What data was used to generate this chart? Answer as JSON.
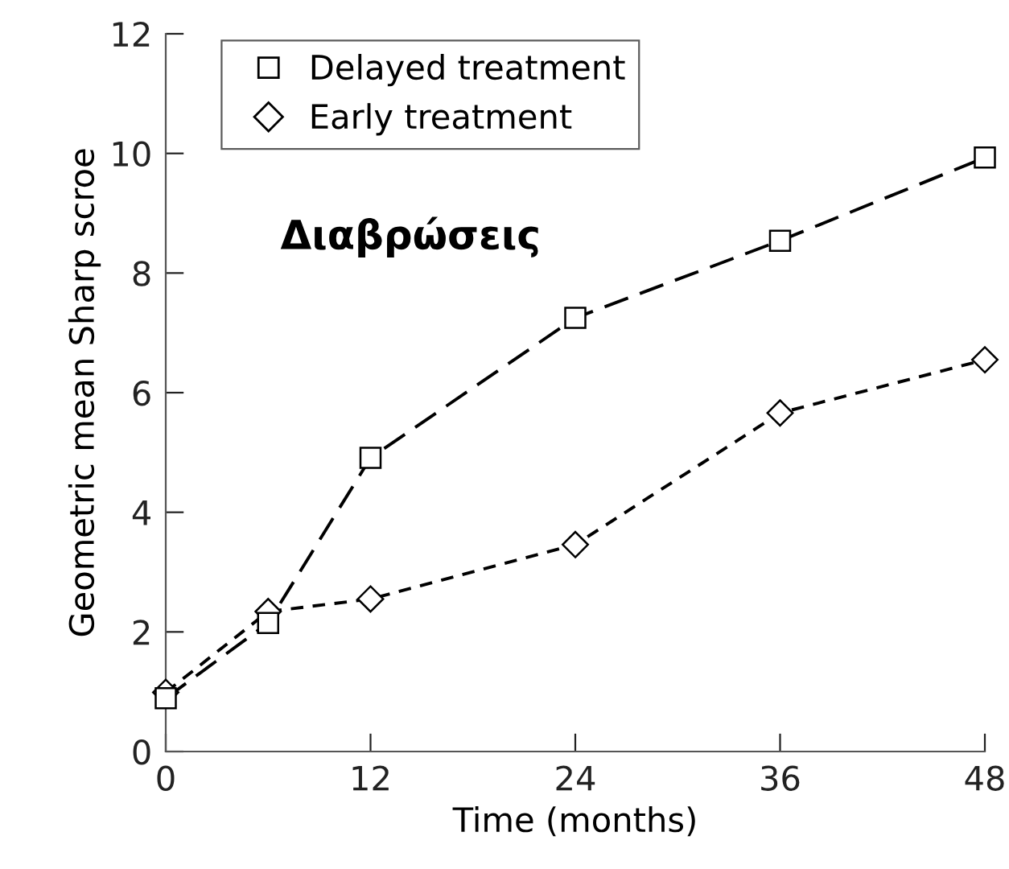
{
  "chart_data": {
    "type": "line",
    "x": [
      0,
      6,
      12,
      24,
      36,
      48
    ],
    "series": [
      {
        "name": "Delayed treatment",
        "color": "#000000",
        "marker": "square",
        "line_style": "dashed",
        "values": [
          0.89,
          2.15,
          4.91,
          7.25,
          8.54,
          9.93
        ]
      },
      {
        "name": "Early treatment",
        "color": "#000000",
        "marker": "diamond",
        "line_style": "dotted",
        "values": [
          0.99,
          2.34,
          2.55,
          3.46,
          5.66,
          6.55
        ]
      }
    ],
    "xlabel": "Time (months)",
    "ylabel": "Geometric mean Sharp scroe",
    "annotations": [
      "Διαβρώσεις"
    ],
    "xlim": [
      0,
      48
    ],
    "ylim": [
      0,
      12
    ],
    "xticks": [
      0,
      12,
      24,
      36,
      48
    ],
    "yticks": [
      0,
      2,
      4,
      6,
      8,
      10,
      12
    ],
    "legend": "top left",
    "grid": false
  }
}
